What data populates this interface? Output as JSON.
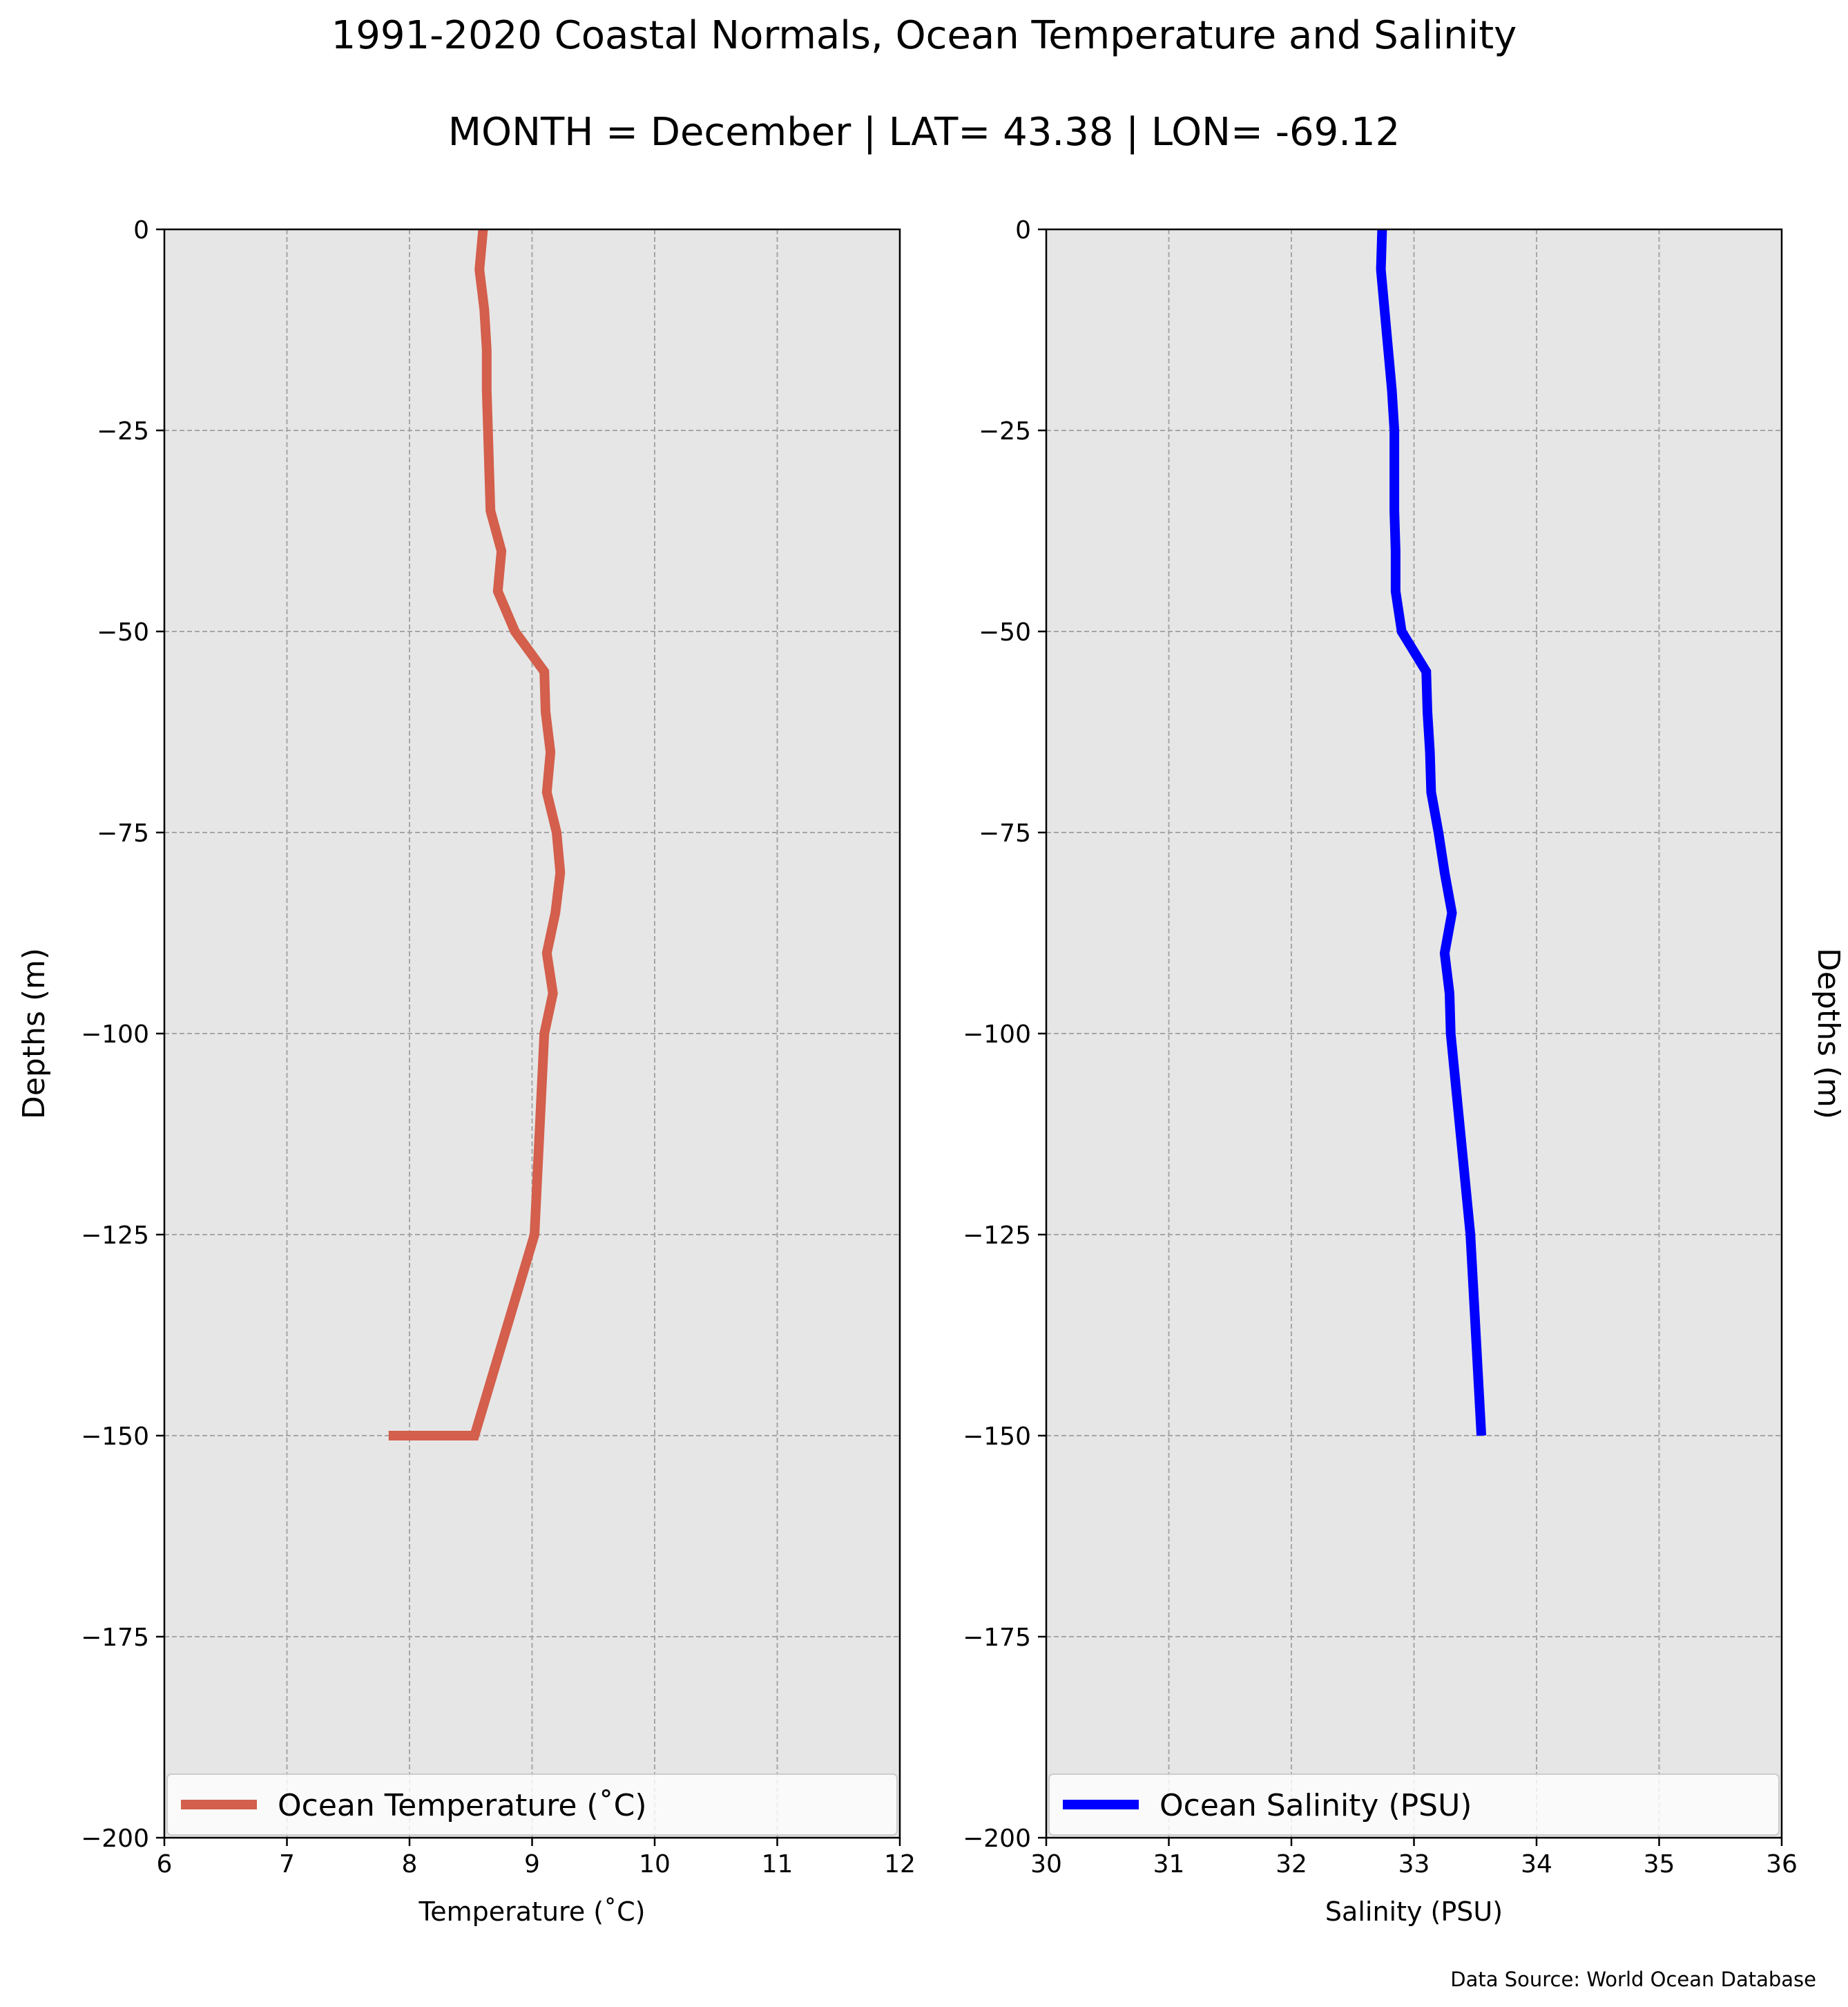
{
  "figure": {
    "title": "1991-2020 Coastal Normals, Ocean Temperature and Salinity",
    "subtitle": "MONTH = December | LAT= 43.38 | LON= -69.12",
    "source": "Data Source: World Ocean Database"
  },
  "chart_data": [
    {
      "type": "line",
      "xlabel": "Temperature ($^\\circ$C)",
      "xlabel_display": "Temperature (˚C)",
      "ylabel": "Depths (m)",
      "xlim": [
        6,
        12
      ],
      "ylim": [
        -200,
        0
      ],
      "xticks": [
        "6",
        "7",
        "8",
        "9",
        "10",
        "11",
        "12"
      ],
      "yticks": [
        "0",
        "−25",
        "−50",
        "−75",
        "−100",
        "−125",
        "−150",
        "−175",
        "−200"
      ],
      "grid": true,
      "legend_position": "lower center",
      "series": [
        {
          "name": "Ocean Temperature (˚C)",
          "color": "#d35f4c",
          "x": [
            8.6,
            8.57,
            8.61,
            8.63,
            8.63,
            8.64,
            8.65,
            8.66,
            8.75,
            8.72,
            8.86,
            9.1,
            9.11,
            9.15,
            9.12,
            9.2,
            9.23,
            9.19,
            9.12,
            9.17,
            9.1,
            9.02,
            8.53,
            7.83
          ],
          "y": [
            0,
            -5,
            -10,
            -15,
            -20,
            -25,
            -30,
            -35,
            -40,
            -45,
            -50,
            -55,
            -60,
            -65,
            -70,
            -75,
            -80,
            -85,
            -90,
            -95,
            -100,
            -125,
            -150,
            -150
          ]
        }
      ],
      "background": "#e6e6e6"
    },
    {
      "type": "line",
      "xlabel": "Salinity (PSU)",
      "ylabel": "Depths (m)",
      "xlim": [
        30,
        36
      ],
      "ylim": [
        -200,
        0
      ],
      "xticks": [
        "30",
        "31",
        "32",
        "33",
        "34",
        "35",
        "36"
      ],
      "yticks": [
        "0",
        "−25",
        "−50",
        "−75",
        "−100",
        "−125",
        "−150",
        "−175",
        "−200"
      ],
      "grid": true,
      "legend_position": "lower center",
      "series": [
        {
          "name": "Ocean Salinity (PSU)",
          "color": "#0000ff",
          "x": [
            32.74,
            32.73,
            32.76,
            32.79,
            32.82,
            32.84,
            32.84,
            32.84,
            32.85,
            32.85,
            32.9,
            33.1,
            33.11,
            33.13,
            33.14,
            33.2,
            33.25,
            33.31,
            33.25,
            33.29,
            33.3,
            33.46,
            33.55,
            33.55
          ],
          "y": [
            0,
            -5,
            -10,
            -15,
            -20,
            -25,
            -30,
            -35,
            -40,
            -45,
            -50,
            -55,
            -60,
            -65,
            -70,
            -75,
            -80,
            -85,
            -90,
            -95,
            -100,
            -125,
            -150,
            -150
          ]
        }
      ],
      "background": "#e6e6e6"
    }
  ]
}
